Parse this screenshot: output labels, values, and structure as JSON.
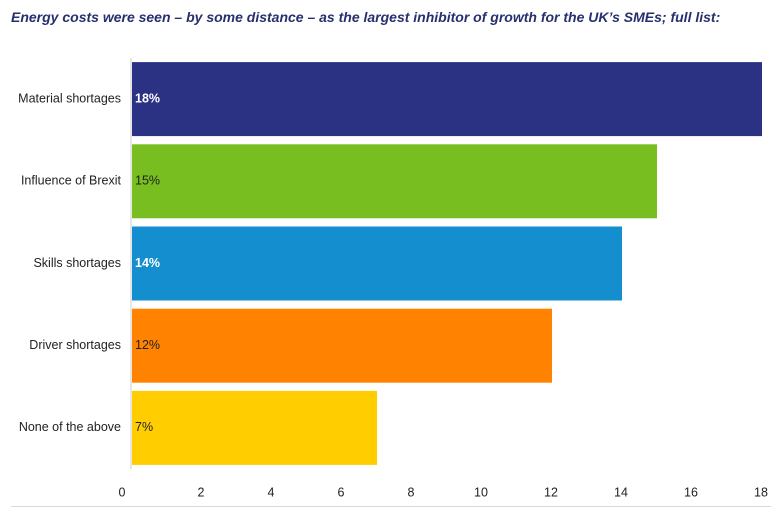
{
  "title": "Energy costs were seen – by some distance – as the largest inhibitor of growth for the UK’s SMEs; full list:",
  "chart_data": {
    "type": "bar",
    "orientation": "horizontal",
    "categories": [
      "Material shortages",
      "Influence of Brexit",
      "Skills shortages",
      "Driver shortages",
      "None of the above"
    ],
    "values": [
      18,
      15,
      14,
      12,
      7
    ],
    "labels": [
      "18%",
      "15%",
      "14%",
      "12%",
      "7%"
    ],
    "colors": [
      "#2b3283",
      "#78be20",
      "#148ecf",
      "#ff8200",
      "#ffcd00"
    ],
    "label_colors": [
      "#ffffff",
      "#222222",
      "#ffffff",
      "#222222",
      "#222222"
    ],
    "xticks": [
      "0",
      "2",
      "4",
      "6",
      "8",
      "10",
      "12",
      "14",
      "16",
      "18"
    ],
    "xlim": [
      0,
      18
    ],
    "grid": false,
    "legend": "none"
  }
}
